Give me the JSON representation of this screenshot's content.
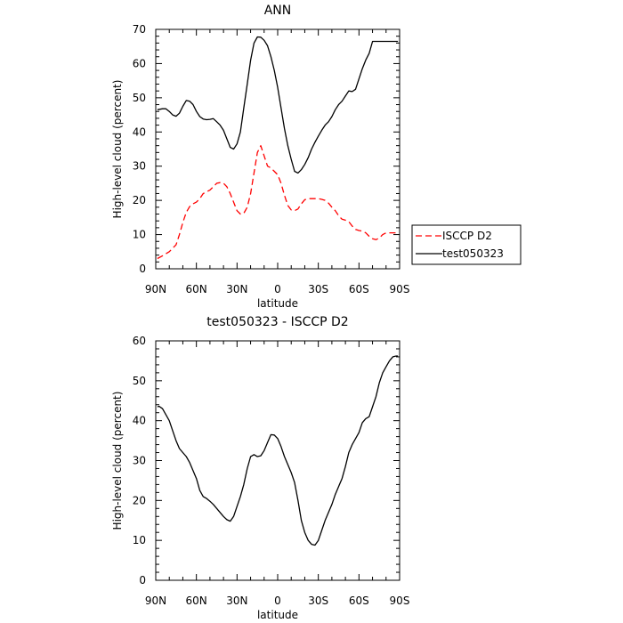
{
  "chart_data": [
    {
      "type": "line",
      "title": "ANN",
      "xlabel": "latitude",
      "ylabel": "High-level cloud (percent)",
      "xlim": [
        -90,
        90
      ],
      "ylim": [
        0,
        70
      ],
      "xticks": [
        -90,
        -60,
        -30,
        0,
        30,
        60,
        90
      ],
      "xtick_labels": [
        "90N",
        "60N",
        "30N",
        "0",
        "30S",
        "60S",
        "90S"
      ],
      "yticks": [
        0,
        10,
        20,
        30,
        40,
        50,
        60,
        70
      ],
      "ytick_labels": [
        "0",
        "10",
        "20",
        "30",
        "40",
        "50",
        "60",
        "70"
      ],
      "legend_position": "right",
      "series": [
        {
          "name": "ISCCP D2",
          "color": "#ff0000",
          "style": "dashed",
          "x": [
            -88.75,
            -85,
            -80,
            -75,
            -72.5,
            -70,
            -67.5,
            -65,
            -62.5,
            -60,
            -57.5,
            -55,
            -52.5,
            -50,
            -47.5,
            -45,
            -42.5,
            -40,
            -37.5,
            -35,
            -32.5,
            -30,
            -27.5,
            -25,
            -22.5,
            -20,
            -17.5,
            -15,
            -12.5,
            -10,
            -7.5,
            -5,
            -2.5,
            0,
            2.5,
            5,
            7.5,
            10,
            12.5,
            15,
            17.5,
            20,
            22.5,
            25,
            27.5,
            30,
            32.5,
            35,
            37.5,
            40,
            42.5,
            45,
            47.5,
            50,
            52.5,
            55,
            57.5,
            60,
            62.5,
            65,
            67.5,
            70,
            72.5,
            75,
            77.5,
            80,
            82.5,
            85,
            87.5,
            88.75
          ],
          "y": [
            3,
            3.8,
            5,
            7,
            10,
            13.5,
            16.5,
            18.2,
            19,
            19.5,
            20.5,
            22,
            22.5,
            23,
            24,
            25,
            25.2,
            25,
            24,
            22,
            19.5,
            17,
            16,
            16.2,
            18,
            22,
            28,
            34,
            36,
            33,
            30,
            29.5,
            28.5,
            27.5,
            25,
            21.5,
            18.5,
            17.2,
            17,
            17.5,
            19,
            20.2,
            20.5,
            20.5,
            20.5,
            20.5,
            20.3,
            20,
            19.2,
            18,
            17,
            15.5,
            14.5,
            14.2,
            13.8,
            12.5,
            11.5,
            11.2,
            11,
            10.5,
            9.5,
            8.8,
            8.5,
            9,
            10,
            10.5,
            10.5,
            10.5,
            10.5,
            10.5
          ]
        },
        {
          "name": "test050323",
          "color": "#000000",
          "style": "solid",
          "x": [
            -88.75,
            -85,
            -82.5,
            -80,
            -77.5,
            -75,
            -72.5,
            -70,
            -67.5,
            -65,
            -62.5,
            -60,
            -57.5,
            -55,
            -52.5,
            -50,
            -47.5,
            -45,
            -42.5,
            -40,
            -37.5,
            -35,
            -32.5,
            -30,
            -27.5,
            -25,
            -22.5,
            -20,
            -17.5,
            -15,
            -12.5,
            -10,
            -7.5,
            -5,
            -2.5,
            0,
            2.5,
            5,
            7.5,
            10,
            12.5,
            15,
            17.5,
            20,
            22.5,
            25,
            27.5,
            30,
            32.5,
            35,
            37.5,
            40,
            42.5,
            45,
            47.5,
            50,
            52.5,
            55,
            57.5,
            60,
            62.5,
            65,
            67.5,
            70,
            72.5,
            75,
            77.5,
            80,
            82.5,
            85,
            87.5,
            88.75
          ],
          "y": [
            46.5,
            46.8,
            46.8,
            46,
            45,
            44.6,
            45.5,
            47.5,
            49.2,
            49,
            48,
            46,
            44.5,
            43.8,
            43.6,
            43.7,
            43.9,
            43,
            42,
            40.5,
            38,
            35.5,
            35,
            36.5,
            40,
            47,
            54,
            61,
            66,
            67.8,
            67.7,
            66.8,
            65.2,
            62,
            58,
            53,
            47,
            41,
            36,
            32,
            28.5,
            28,
            29,
            30.5,
            32.5,
            35,
            37,
            38.8,
            40.5,
            42,
            43,
            44.5,
            46.5,
            48,
            49,
            50.5,
            52,
            51.8,
            52.5,
            55.5,
            58.5,
            61,
            63,
            66.5,
            66.5,
            66.5,
            66.5,
            66.5,
            66.5,
            66.5,
            66.5,
            66.5
          ]
        }
      ]
    },
    {
      "type": "line",
      "title": "test050323 - ISCCP D2",
      "xlabel": "latitude",
      "ylabel": "High-level cloud (percent)",
      "xlim": [
        -90,
        90
      ],
      "ylim": [
        0,
        60
      ],
      "xticks": [
        -90,
        -60,
        -30,
        0,
        30,
        60,
        90
      ],
      "xtick_labels": [
        "90N",
        "60N",
        "30N",
        "0",
        "30S",
        "60S",
        "90S"
      ],
      "yticks": [
        0,
        10,
        20,
        30,
        40,
        50,
        60
      ],
      "ytick_labels": [
        "0",
        "10",
        "20",
        "30",
        "40",
        "50",
        "60"
      ],
      "series": [
        {
          "color": "#000000",
          "style": "solid",
          "x": [
            -88.75,
            -87.5,
            -85,
            -82.5,
            -80,
            -77.5,
            -75,
            -72.5,
            -70,
            -67.5,
            -65,
            -62.5,
            -60,
            -57.5,
            -55,
            -52.5,
            -50,
            -47.5,
            -45,
            -42.5,
            -40,
            -37.5,
            -35,
            -32.5,
            -30,
            -27.5,
            -25,
            -22.5,
            -20,
            -17.5,
            -15,
            -12.5,
            -10,
            -7.5,
            -5,
            -2.5,
            0,
            2.5,
            5,
            7.5,
            10,
            12.5,
            15,
            17.5,
            20,
            22.5,
            25,
            27.5,
            30,
            32.5,
            35,
            37.5,
            40,
            42.5,
            45,
            47.5,
            50,
            52.5,
            55,
            57.5,
            60,
            62.5,
            65,
            67.5,
            70,
            72.5,
            75,
            77.5,
            80,
            82.5,
            85,
            87.5,
            88.75
          ],
          "y": [
            43.5,
            43.6,
            43,
            41.5,
            40,
            37.5,
            35,
            33,
            32,
            31,
            29.5,
            27.5,
            25.5,
            22.5,
            21,
            20.5,
            19.8,
            19,
            18,
            17,
            16,
            15.2,
            14.8,
            16,
            18.5,
            21,
            24,
            28,
            31,
            31.5,
            31,
            31.2,
            32.5,
            34.5,
            36.5,
            36.4,
            35.5,
            33.5,
            31,
            29,
            27,
            24.5,
            20,
            15,
            12,
            10,
            9,
            8.8,
            10,
            12.5,
            15,
            17,
            19,
            21.5,
            23.5,
            25.5,
            28.5,
            32,
            34,
            35.5,
            37,
            39.5,
            40.5,
            41,
            43.5,
            46,
            49.5,
            52,
            53.5,
            55,
            56,
            56.2,
            56.2
          ]
        }
      ]
    }
  ]
}
